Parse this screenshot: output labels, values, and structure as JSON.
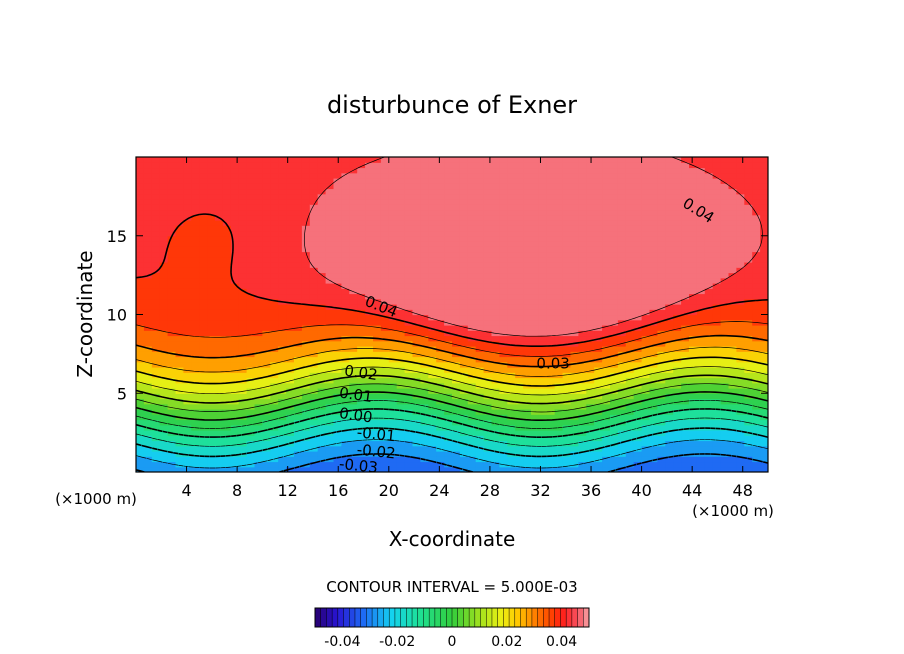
{
  "chart_data": {
    "type": "heatmap",
    "subtype": "filled-contour",
    "title": "disturbunce of Exner",
    "xlabel": "X-coordinate",
    "ylabel": "Z-coordinate",
    "x_unit": "(×1000 m)",
    "z_unit": "(×1000 m)",
    "xlim": [
      0,
      50
    ],
    "zlim": [
      0,
      20
    ],
    "x_ticks": [
      "4",
      "8",
      "12",
      "16",
      "20",
      "24",
      "28",
      "32",
      "36",
      "40",
      "44",
      "48"
    ],
    "z_ticks": [
      "5",
      "10",
      "15"
    ],
    "contour_interval_text": "CONTOUR INTERVAL = 5.000E-03",
    "contour_interval": 0.005,
    "value_range": [
      -0.045,
      0.045
    ],
    "contour_labels": [
      {
        "text": "0.04",
        "x": 44.5,
        "z": 16.6,
        "angle": 32
      },
      {
        "text": "0.04",
        "x": 19.4,
        "z": 10.5,
        "angle": 22
      },
      {
        "text": "0.03",
        "x": 33.0,
        "z": 6.9,
        "angle": 0
      },
      {
        "text": "0.02",
        "x": 17.8,
        "z": 6.3,
        "angle": 8
      },
      {
        "text": "0.01",
        "x": 17.4,
        "z": 4.9,
        "angle": 8
      },
      {
        "text": "0.00",
        "x": 17.4,
        "z": 3.6,
        "angle": 8
      },
      {
        "text": "-0.01",
        "x": 19.0,
        "z": 2.4,
        "angle": 6
      },
      {
        "text": "-0.02",
        "x": 19.0,
        "z": 1.3,
        "angle": 6
      },
      {
        "text": "-0.03",
        "x": 17.6,
        "z": 0.4,
        "angle": 6
      }
    ],
    "colorbar": {
      "range": [
        -0.05,
        0.05
      ],
      "tick_labels": [
        "-0.04",
        "-0.02",
        "0",
        "0.02",
        "0.04"
      ],
      "tick_values": [
        -0.04,
        -0.02,
        0,
        0.02,
        0.04
      ]
    },
    "colors": {
      "low": "#2a1ac8",
      "mid": "#20c84a",
      "high": "#ff1010",
      "peak": "#f27a80",
      "frame": "#000000"
    }
  }
}
